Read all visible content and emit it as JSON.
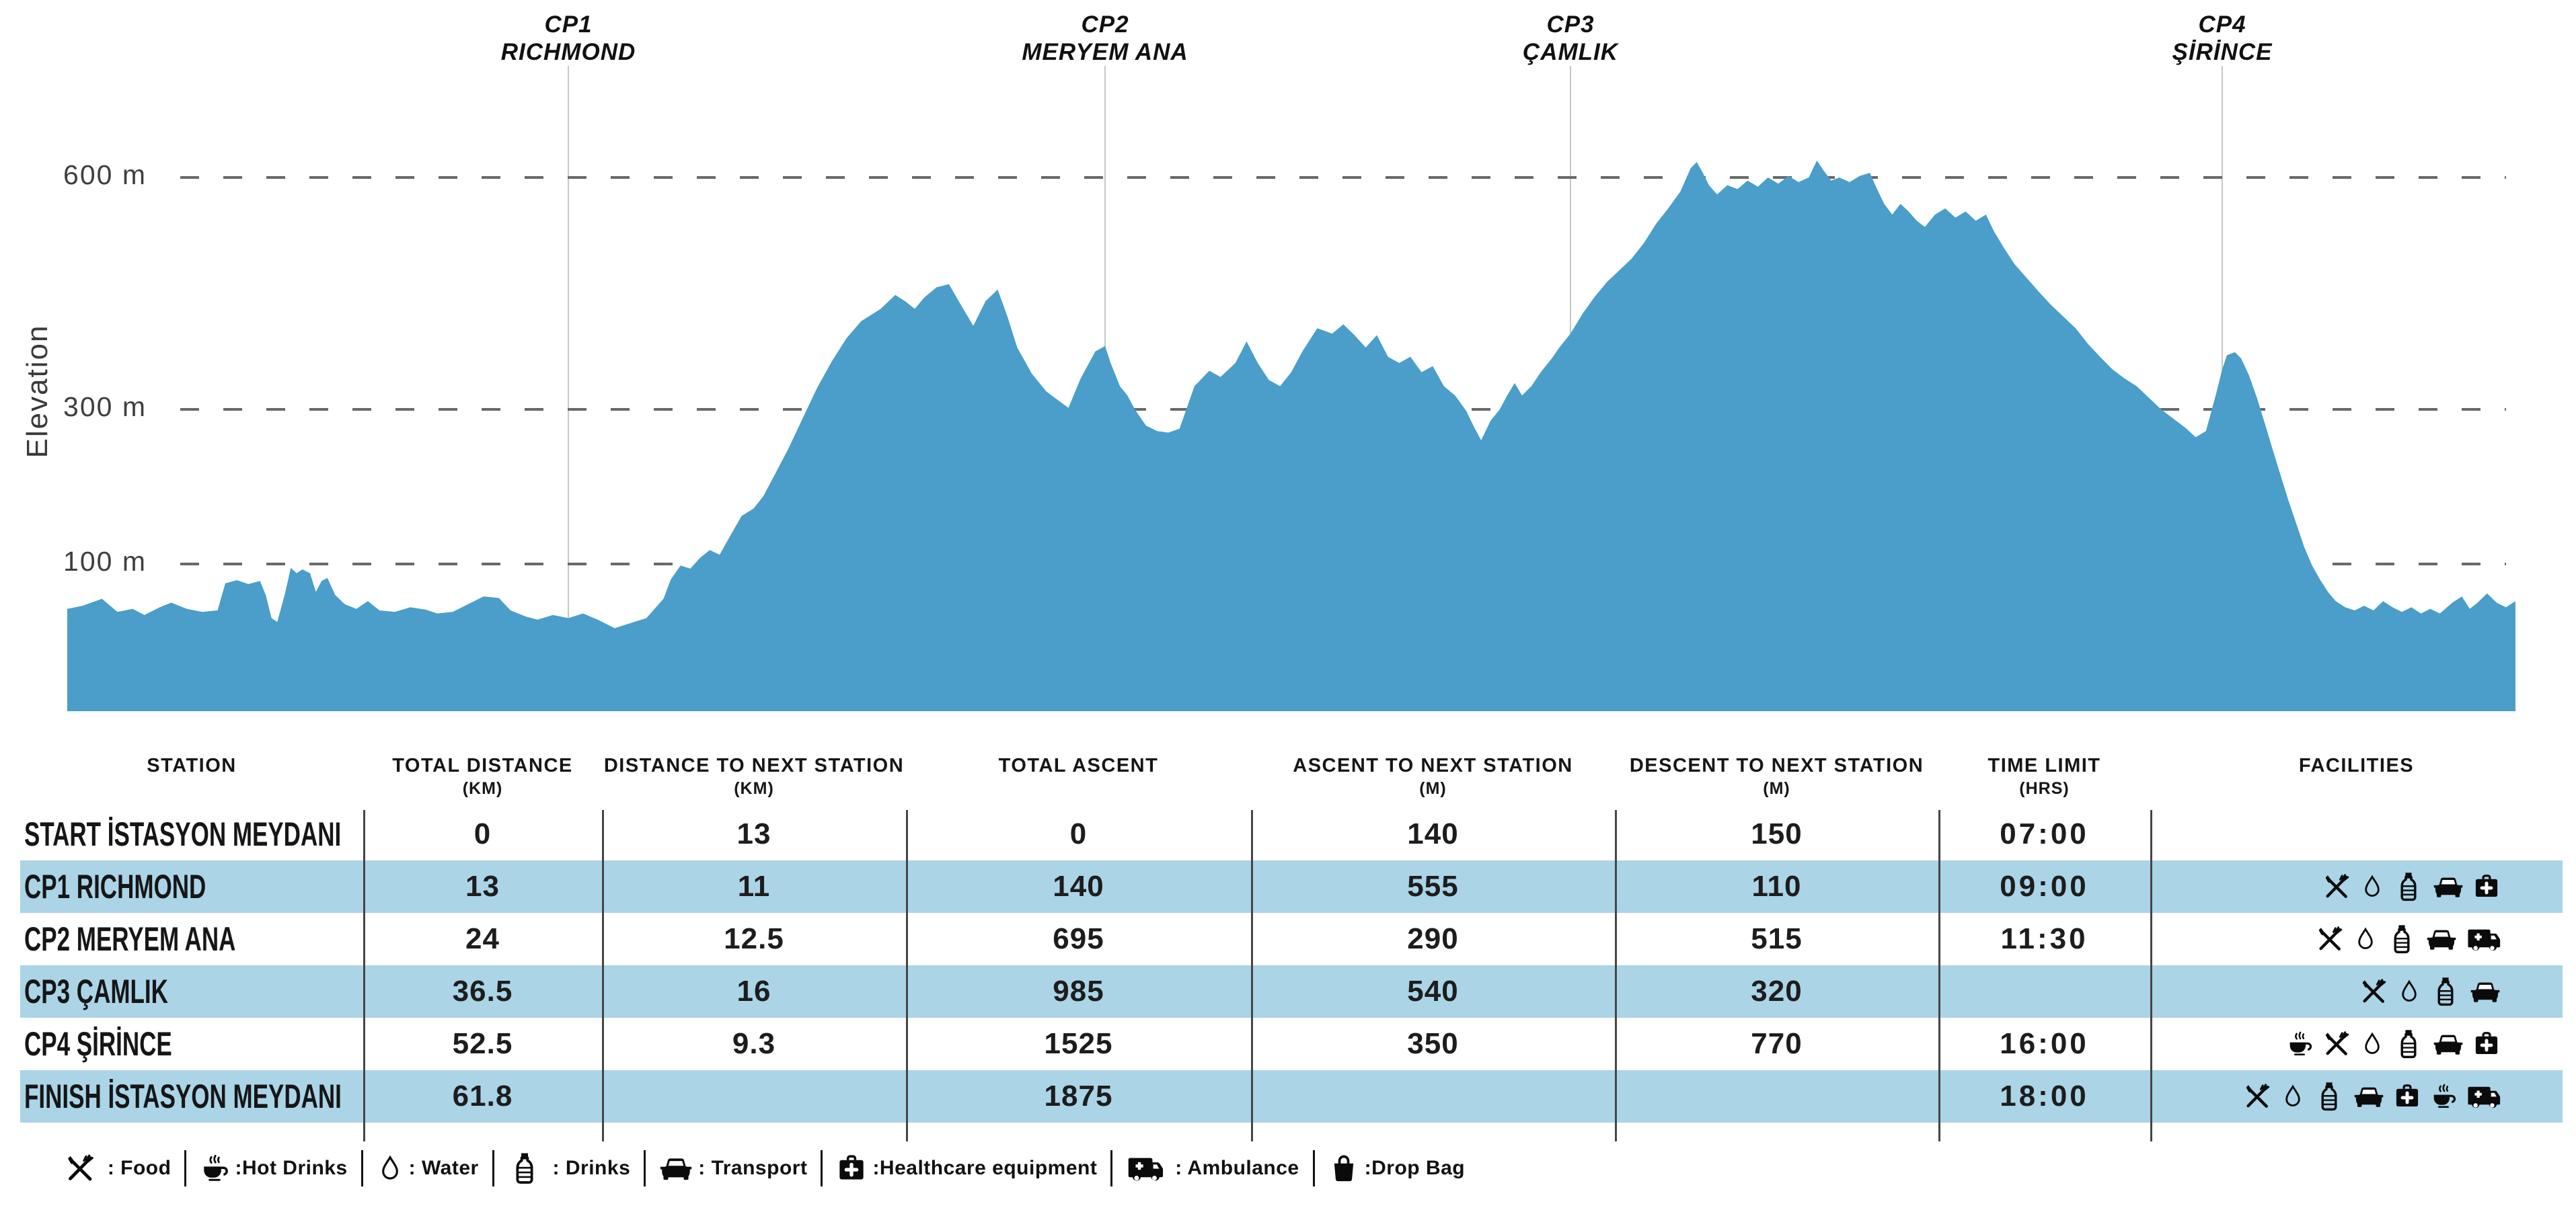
{
  "chart": {
    "y_axis_label": "Elevation",
    "yticks": [
      {
        "value": 600,
        "label": "600 m"
      },
      {
        "value": 300,
        "label": "300 m"
      },
      {
        "value": 100,
        "label": "100 m"
      }
    ],
    "checkpoints": [
      {
        "id": "cp1",
        "line1": "CP1",
        "line2": "RICHMOND",
        "km": 13
      },
      {
        "id": "cp2",
        "line1": "CP2",
        "line2": "MERYEM ANA",
        "km": 24
      },
      {
        "id": "cp3",
        "line1": "CP3",
        "line2": "ÇAMLIK",
        "km": 36.5
      },
      {
        "id": "cp4",
        "line1": "CP4",
        "line2": "ŞİRİNCE",
        "km": 52.5
      }
    ]
  },
  "chart_data": {
    "type": "area",
    "title": "",
    "xlabel": "",
    "ylabel": "Elevation",
    "x_unit": "km",
    "y_unit": "m",
    "x_range": [
      0,
      61.8
    ],
    "ylim": [
      0,
      650
    ],
    "ytick_values": [
      600,
      300,
      100
    ],
    "ytick_labels": [
      "600 m",
      "300 m",
      "100 m"
    ],
    "grid": "horizontal-dashed",
    "legend_position": "none",
    "checkpoint_lines_km": [
      13,
      24,
      36.5,
      52.5
    ],
    "series": [
      {
        "name": "elevation_profile",
        "points": [
          [
            0,
            42
          ],
          [
            0.4,
            46
          ],
          [
            0.9,
            55
          ],
          [
            1.3,
            38
          ],
          [
            1.7,
            42
          ],
          [
            2,
            34
          ],
          [
            2.4,
            44
          ],
          [
            2.7,
            50
          ],
          [
            3.1,
            42
          ],
          [
            3.5,
            38
          ],
          [
            3.9,
            40
          ],
          [
            4.1,
            75
          ],
          [
            4.4,
            79
          ],
          [
            4.7,
            74
          ],
          [
            5,
            78
          ],
          [
            5.15,
            60
          ],
          [
            5.3,
            30
          ],
          [
            5.45,
            25
          ],
          [
            5.65,
            62
          ],
          [
            5.8,
            95
          ],
          [
            5.95,
            88
          ],
          [
            6.1,
            93
          ],
          [
            6.3,
            88
          ],
          [
            6.45,
            64
          ],
          [
            6.6,
            78
          ],
          [
            6.75,
            82
          ],
          [
            6.95,
            60
          ],
          [
            7.2,
            48
          ],
          [
            7.5,
            42
          ],
          [
            7.8,
            52
          ],
          [
            8.1,
            40
          ],
          [
            8.5,
            38
          ],
          [
            8.9,
            44
          ],
          [
            9.3,
            41
          ],
          [
            9.6,
            36
          ],
          [
            10,
            38
          ],
          [
            10.4,
            48
          ],
          [
            10.8,
            58
          ],
          [
            11.2,
            56
          ],
          [
            11.5,
            40
          ],
          [
            11.9,
            32
          ],
          [
            12.2,
            28
          ],
          [
            12.6,
            34
          ],
          [
            13,
            30
          ],
          [
            13.3,
            36
          ],
          [
            13.6,
            28
          ],
          [
            13.95,
            17
          ],
          [
            14.3,
            24
          ],
          [
            14.6,
            30
          ],
          [
            14.95,
            55
          ],
          [
            15.1,
            80
          ],
          [
            15.3,
            98
          ],
          [
            15.5,
            94
          ],
          [
            15.7,
            108
          ],
          [
            15.9,
            118
          ],
          [
            16.1,
            112
          ],
          [
            16.35,
            140
          ],
          [
            16.55,
            162
          ],
          [
            16.8,
            172
          ],
          [
            17,
            188
          ],
          [
            17.2,
            212
          ],
          [
            17.5,
            248
          ],
          [
            17.8,
            288
          ],
          [
            18.1,
            328
          ],
          [
            18.4,
            362
          ],
          [
            18.7,
            392
          ],
          [
            19,
            414
          ],
          [
            19.4,
            430
          ],
          [
            19.7,
            448
          ],
          [
            19.9,
            440
          ],
          [
            20.1,
            430
          ],
          [
            20.3,
            445
          ],
          [
            20.55,
            458
          ],
          [
            20.8,
            462
          ],
          [
            21,
            440
          ],
          [
            21.3,
            408
          ],
          [
            21.55,
            440
          ],
          [
            21.8,
            455
          ],
          [
            22,
            420
          ],
          [
            22.2,
            380
          ],
          [
            22.5,
            346
          ],
          [
            22.8,
            323
          ],
          [
            23.1,
            309
          ],
          [
            23.25,
            302
          ],
          [
            23.5,
            340
          ],
          [
            23.8,
            375
          ],
          [
            24,
            382
          ],
          [
            24.15,
            360
          ],
          [
            24.4,
            330
          ],
          [
            24.6,
            318
          ],
          [
            24.8,
            300
          ],
          [
            25.1,
            279
          ],
          [
            25.4,
            272
          ],
          [
            25.7,
            270
          ],
          [
            26,
            275
          ],
          [
            26.4,
            330
          ],
          [
            26.8,
            350
          ],
          [
            27.1,
            342
          ],
          [
            27.5,
            360
          ],
          [
            27.8,
            388
          ],
          [
            28.1,
            360
          ],
          [
            28.4,
            338
          ],
          [
            28.7,
            330
          ],
          [
            29,
            348
          ],
          [
            29.3,
            375
          ],
          [
            29.7,
            405
          ],
          [
            30.1,
            398
          ],
          [
            30.4,
            410
          ],
          [
            30.7,
            396
          ],
          [
            31,
            380
          ],
          [
            31.3,
            396
          ],
          [
            31.6,
            368
          ],
          [
            31.9,
            360
          ],
          [
            32.2,
            368
          ],
          [
            32.5,
            348
          ],
          [
            32.8,
            356
          ],
          [
            33.1,
            330
          ],
          [
            33.4,
            318
          ],
          [
            33.7,
            298
          ],
          [
            33.9,
            278
          ],
          [
            34.1,
            260
          ],
          [
            34.35,
            285
          ],
          [
            34.6,
            300
          ],
          [
            34.8,
            318
          ],
          [
            35,
            334
          ],
          [
            35.2,
            318
          ],
          [
            35.45,
            330
          ],
          [
            35.7,
            348
          ],
          [
            36,
            366
          ],
          [
            36.2,
            380
          ],
          [
            36.5,
            398
          ],
          [
            36.8,
            424
          ],
          [
            37.1,
            446
          ],
          [
            37.4,
            465
          ],
          [
            37.7,
            480
          ],
          [
            38,
            495
          ],
          [
            38.3,
            515
          ],
          [
            38.6,
            540
          ],
          [
            38.9,
            560
          ],
          [
            39.2,
            582
          ],
          [
            39.45,
            612
          ],
          [
            39.6,
            620
          ],
          [
            39.75,
            606
          ],
          [
            39.9,
            590
          ],
          [
            40.1,
            578
          ],
          [
            40.35,
            590
          ],
          [
            40.6,
            585
          ],
          [
            40.85,
            596
          ],
          [
            41.1,
            588
          ],
          [
            41.35,
            600
          ],
          [
            41.6,
            592
          ],
          [
            41.85,
            602
          ],
          [
            42.1,
            594
          ],
          [
            42.35,
            600
          ],
          [
            42.55,
            622
          ],
          [
            42.7,
            610
          ],
          [
            42.9,
            596
          ],
          [
            43.1,
            600
          ],
          [
            43.35,
            594
          ],
          [
            43.6,
            602
          ],
          [
            43.85,
            606
          ],
          [
            44,
            588
          ],
          [
            44.2,
            566
          ],
          [
            44.4,
            552
          ],
          [
            44.6,
            566
          ],
          [
            44.8,
            556
          ],
          [
            45,
            544
          ],
          [
            45.2,
            536
          ],
          [
            45.45,
            552
          ],
          [
            45.7,
            560
          ],
          [
            45.95,
            548
          ],
          [
            46.2,
            556
          ],
          [
            46.45,
            544
          ],
          [
            46.7,
            552
          ],
          [
            46.9,
            530
          ],
          [
            47.15,
            508
          ],
          [
            47.4,
            488
          ],
          [
            47.7,
            470
          ],
          [
            48,
            452
          ],
          [
            48.3,
            435
          ],
          [
            48.6,
            420
          ],
          [
            48.9,
            405
          ],
          [
            49.2,
            385
          ],
          [
            49.5,
            368
          ],
          [
            49.8,
            352
          ],
          [
            50.1,
            340
          ],
          [
            50.4,
            330
          ],
          [
            50.7,
            315
          ],
          [
            51,
            300
          ],
          [
            51.3,
            288
          ],
          [
            51.6,
            276
          ],
          [
            51.85,
            264
          ],
          [
            52.1,
            272
          ],
          [
            52.35,
            320
          ],
          [
            52.5,
            352
          ],
          [
            52.65,
            370
          ],
          [
            52.9,
            374
          ],
          [
            53.1,
            366
          ],
          [
            53.35,
            344
          ],
          [
            53.6,
            315
          ],
          [
            53.85,
            282
          ],
          [
            54.1,
            248
          ],
          [
            54.35,
            215
          ],
          [
            54.6,
            182
          ],
          [
            54.85,
            152
          ],
          [
            55.1,
            122
          ],
          [
            55.35,
            98
          ],
          [
            55.6,
            80
          ],
          [
            55.85,
            64
          ],
          [
            56.1,
            52
          ],
          [
            56.4,
            44
          ],
          [
            56.7,
            40
          ],
          [
            57,
            46
          ],
          [
            57.3,
            40
          ],
          [
            57.6,
            52
          ],
          [
            57.9,
            44
          ],
          [
            58.2,
            38
          ],
          [
            58.5,
            44
          ],
          [
            58.8,
            36
          ],
          [
            59.1,
            42
          ],
          [
            59.4,
            36
          ],
          [
            59.8,
            50
          ],
          [
            60.1,
            58
          ],
          [
            60.35,
            42
          ],
          [
            60.6,
            50
          ],
          [
            60.9,
            62
          ],
          [
            61.2,
            50
          ],
          [
            61.5,
            44
          ],
          [
            61.8,
            52
          ]
        ]
      }
    ]
  },
  "table": {
    "headers": [
      {
        "label": "STATION",
        "sub": ""
      },
      {
        "label": "TOTAL DISTANCE",
        "sub": "(KM)"
      },
      {
        "label": "DISTANCE TO NEXT STATION",
        "sub": "(KM)"
      },
      {
        "label": "TOTAL ASCENT",
        "sub": ""
      },
      {
        "label": "ASCENT TO NEXT STATION",
        "sub": "(M)"
      },
      {
        "label": "DESCENT TO NEXT STATION",
        "sub": "(M)"
      },
      {
        "label": "TIME LIMIT",
        "sub": "(HRS)"
      },
      {
        "label": "FACILITIES",
        "sub": ""
      }
    ],
    "rows": [
      {
        "station": "START İSTASYON MEYDANI",
        "total_distance_km": "0",
        "distance_to_next_km": "13",
        "total_ascent": "0",
        "ascent_to_next_m": "140",
        "descent_to_next_m": "150",
        "time_limit_hrs": "07:00",
        "facilities": []
      },
      {
        "station": "CP1 RICHMOND",
        "total_distance_km": "13",
        "distance_to_next_km": "11",
        "total_ascent": "140",
        "ascent_to_next_m": "555",
        "descent_to_next_m": "110",
        "time_limit_hrs": "09:00",
        "facilities": [
          "food",
          "water",
          "drinks",
          "transport",
          "healthcare"
        ]
      },
      {
        "station": "CP2 MERYEM ANA",
        "total_distance_km": "24",
        "distance_to_next_km": "12.5",
        "total_ascent": "695",
        "ascent_to_next_m": "290",
        "descent_to_next_m": "515",
        "time_limit_hrs": "11:30",
        "facilities": [
          "food",
          "water",
          "drinks",
          "transport",
          "ambulance"
        ]
      },
      {
        "station": "CP3 ÇAMLIK",
        "total_distance_km": "36.5",
        "distance_to_next_km": "16",
        "total_ascent": "985",
        "ascent_to_next_m": "540",
        "descent_to_next_m": "320",
        "time_limit_hrs": "",
        "facilities": [
          "food",
          "water",
          "drinks",
          "transport"
        ]
      },
      {
        "station": "CP4 ŞİRİNCE",
        "total_distance_km": "52.5",
        "distance_to_next_km": "9.3",
        "total_ascent": "1525",
        "ascent_to_next_m": "350",
        "descent_to_next_m": "770",
        "time_limit_hrs": "16:00",
        "facilities": [
          "hot_drinks",
          "food",
          "water",
          "drinks",
          "transport",
          "healthcare"
        ]
      },
      {
        "station": "FINISH İSTASYON MEYDANI",
        "total_distance_km": "61.8",
        "distance_to_next_km": "",
        "total_ascent": "1875",
        "ascent_to_next_m": "",
        "descent_to_next_m": "",
        "time_limit_hrs": "18:00",
        "facilities": [
          "food",
          "water",
          "drinks",
          "transport",
          "healthcare",
          "hot_drinks",
          "ambulance"
        ]
      }
    ]
  },
  "legend": {
    "items": [
      {
        "icon": "food",
        "label": " : Food"
      },
      {
        "icon": "hot_drinks",
        "label": ":Hot Drinks"
      },
      {
        "icon": "water",
        "label": ": Water"
      },
      {
        "icon": "drinks",
        "label": " : Drinks"
      },
      {
        "icon": "transport",
        "label": ": Transport"
      },
      {
        "icon": "healthcare",
        "label": ":Healthcare equipment"
      },
      {
        "icon": "ambulance",
        "label": " : Ambulance"
      },
      {
        "icon": "drop_bag",
        "label": ":Drop Bag"
      }
    ]
  },
  "colors": {
    "area_blue": "#4a9ec9",
    "row_blue": "#abd4e7",
    "grid": "#696969",
    "cp_line": "#c7c7c7",
    "text": "#161616",
    "separator": "#454545"
  }
}
